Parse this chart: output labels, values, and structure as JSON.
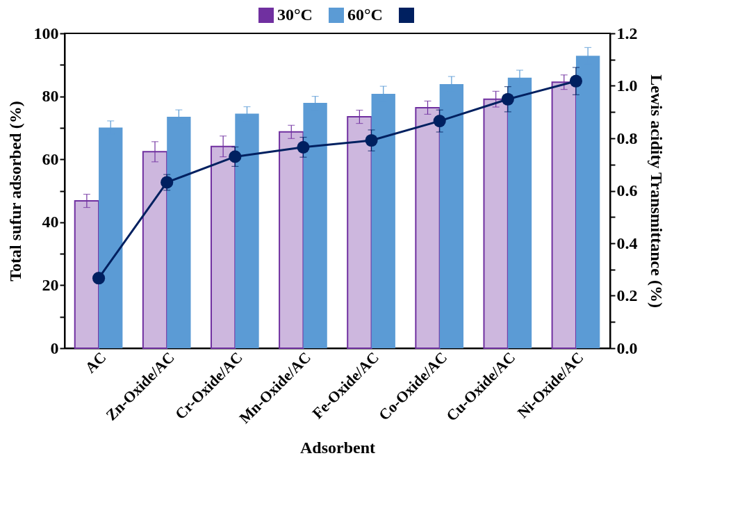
{
  "chart_data": {
    "type": "bar",
    "xlabel": "Adsorbent",
    "ylabel": "Total sufur adsorbed (%)",
    "y2label": "Lewis acidity Transmittance (%)",
    "categories": [
      "AC",
      "Zn-Oxide/AC",
      "Cr-Oxide/AC",
      "Mn-Oxide/AC",
      "Fe-Oxide/AC",
      "Co-Oxide/AC",
      "Cu-Oxide/AC",
      "Ni-Oxide/AC"
    ],
    "series": [
      {
        "name": "30°C",
        "color": "#7030a0",
        "values": [
          46.8,
          62.4,
          64.1,
          68.7,
          73.5,
          76.4,
          79.1,
          84.5
        ],
        "errors": [
          2.1,
          3.2,
          3.3,
          2.1,
          2.1,
          2.1,
          2.5,
          2.3
        ]
      },
      {
        "name": "60°C",
        "color": "#5b9bd5",
        "values": [
          70.1,
          73.5,
          74.5,
          77.9,
          80.8,
          83.9,
          85.9,
          92.9
        ],
        "errors": [
          2.1,
          2.2,
          2.2,
          2.1,
          2.4,
          2.4,
          2.4,
          2.6
        ]
      },
      {
        "type": "line",
        "axis": "y2",
        "marker": "circle",
        "color": "#002060",
        "values": [
          0.267,
          0.632,
          0.73,
          0.766,
          0.792,
          0.866,
          0.949,
          1.018
        ],
        "errors": [
          null,
          0.03,
          0.037,
          0.038,
          0.04,
          0.042,
          0.048,
          0.052
        ]
      }
    ],
    "ylim": [
      0,
      100
    ],
    "yticks": [
      0,
      {
        "value": 10,
        "label": null
      },
      20,
      {
        "value": 30,
        "label": null
      },
      40,
      {
        "value": 50,
        "label": null
      },
      60,
      {
        "value": 70,
        "label": null
      },
      80,
      {
        "value": 90,
        "label": null
      },
      100
    ],
    "y2lim": [
      0,
      1.2
    ],
    "y2ticks": [
      {
        "value": 0,
        "label": "0.0"
      },
      {
        "value": 0.1,
        "label": null
      },
      {
        "value": 0.2,
        "label": "0.2"
      },
      {
        "value": 0.3,
        "label": null
      },
      {
        "value": 0.4,
        "label": "0.4"
      },
      {
        "value": 0.5,
        "label": null
      },
      {
        "value": 0.6,
        "label": "0.6"
      },
      {
        "value": 0.7,
        "label": null
      },
      {
        "value": 0.8,
        "label": "0.8"
      },
      {
        "value": 0.9,
        "label": null
      },
      {
        "value": 1.0,
        "label": "1.0"
      },
      {
        "value": 1.1,
        "label": null
      },
      {
        "value": 1.2,
        "label": "1.2"
      }
    ],
    "grid": false,
    "legend": "top"
  }
}
